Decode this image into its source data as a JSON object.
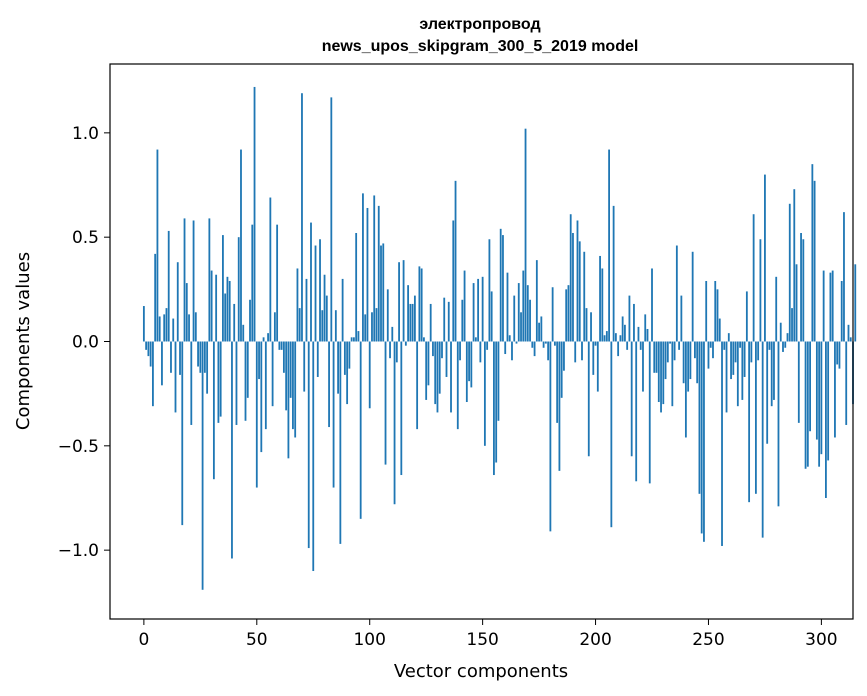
{
  "chart_data": {
    "type": "bar",
    "title_line1": "электропровод",
    "title_line2": "news_upos_skipgram_300_5_2019 model",
    "xlabel": "Vector components",
    "ylabel": "Components values",
    "xlim": [
      -15,
      314
    ],
    "ylim": [
      -1.33,
      1.33
    ],
    "xticks": [
      0,
      50,
      100,
      150,
      200,
      250,
      300
    ],
    "xtick_labels": [
      "0",
      "50",
      "100",
      "150",
      "200",
      "250",
      "300"
    ],
    "yticks": [
      -1.0,
      -0.5,
      0.0,
      0.5,
      1.0
    ],
    "ytick_labels": [
      "−1.0",
      "−0.5",
      "0.0",
      "0.5",
      "1.0"
    ],
    "bar_color": "#1f77b4",
    "values": [
      0.17,
      -0.04,
      -0.07,
      -0.12,
      -0.31,
      0.42,
      0.92,
      0.12,
      -0.21,
      0.13,
      0.16,
      0.53,
      -0.15,
      0.11,
      -0.34,
      0.38,
      -0.16,
      -0.88,
      0.59,
      0.28,
      0.13,
      -0.4,
      0.58,
      0.14,
      -0.12,
      -0.15,
      -1.19,
      -0.15,
      -0.25,
      0.59,
      0.34,
      -0.66,
      0.32,
      -0.39,
      -0.36,
      0.51,
      0.23,
      0.31,
      0.29,
      -1.04,
      0.18,
      -0.4,
      0.5,
      0.92,
      0.08,
      -0.38,
      -0.27,
      0.2,
      0.56,
      1.22,
      -0.7,
      -0.18,
      -0.53,
      0.02,
      -0.42,
      0.04,
      0.69,
      -0.31,
      0.14,
      0.56,
      -0.04,
      -0.04,
      -0.15,
      -0.33,
      -0.56,
      -0.27,
      -0.42,
      -0.46,
      0.35,
      0.16,
      1.19,
      -0.24,
      0.3,
      -0.99,
      0.57,
      -1.1,
      0.46,
      -0.17,
      0.49,
      0.15,
      0.32,
      0.22,
      -0.41,
      1.17,
      -0.7,
      0.15,
      -0.25,
      -0.97,
      0.3,
      -0.16,
      -0.3,
      -0.13,
      0.02,
      0.02,
      0.52,
      0.05,
      -0.85,
      0.71,
      0.13,
      0.64,
      -0.32,
      0.14,
      0.7,
      0.16,
      0.65,
      0.46,
      0.47,
      -0.59,
      0.25,
      -0.08,
      0.07,
      -0.78,
      -0.1,
      0.38,
      -0.64,
      0.39,
      -0.02,
      0.27,
      0.18,
      0.18,
      0.22,
      -0.42,
      0.36,
      0.35,
      0.02,
      -0.28,
      -0.21,
      0.18,
      -0.07,
      -0.3,
      -0.34,
      -0.25,
      -0.08,
      0.21,
      -0.17,
      0.19,
      -0.34,
      0.58,
      0.77,
      -0.42,
      -0.09,
      0.2,
      0.34,
      -0.29,
      -0.19,
      -0.22,
      0.28,
      0.02,
      0.3,
      -0.1,
      0.31,
      -0.5,
      -0.04,
      0.49,
      0.24,
      -0.64,
      -0.58,
      -0.38,
      0.54,
      0.51,
      -0.06,
      0.33,
      0.03,
      -0.09,
      0.22,
      -0.01,
      0.28,
      0.14,
      0.34,
      1.02,
      0.27,
      0.2,
      -0.03,
      -0.07,
      0.39,
      0.09,
      0.12,
      -0.03,
      -0.01,
      -0.09,
      -0.91,
      0.26,
      -0.02,
      -0.39,
      -0.62,
      -0.27,
      -0.14,
      0.25,
      0.27,
      0.61,
      0.52,
      -0.1,
      0.58,
      0.48,
      -0.09,
      0.43,
      0.16,
      -0.55,
      0.14,
      -0.16,
      -0.02,
      -0.24,
      0.41,
      0.35,
      0.03,
      0.05,
      0.92,
      -0.89,
      0.65,
      0.04,
      -0.07,
      0.03,
      0.12,
      0.08,
      -0.04,
      0.22,
      -0.55,
      0.18,
      -0.67,
      0.07,
      -0.04,
      -0.24,
      0.13,
      0.06,
      -0.68,
      0.35,
      -0.15,
      -0.15,
      -0.29,
      -0.34,
      -0.3,
      -0.18,
      -0.1,
      -0.01,
      -0.31,
      -0.09,
      0.46,
      -0.04,
      0.22,
      -0.2,
      -0.46,
      -0.24,
      -0.18,
      0.43,
      -0.08,
      -0.2,
      -0.73,
      -0.92,
      -0.96,
      0.29,
      -0.13,
      -0.03,
      -0.08,
      0.29,
      0.25,
      0.11,
      -0.98,
      -0.04,
      -0.34,
      0.04,
      -0.18,
      -0.16,
      -0.1,
      -0.31,
      -0.03,
      -0.28,
      -0.17,
      0.24,
      -0.77,
      -0.1,
      0.61,
      -0.73,
      -0.09,
      0.49,
      -0.94,
      0.8,
      -0.49,
      -0.04,
      -0.31,
      -0.28,
      0.31,
      -0.79,
      0.09,
      -0.05,
      -0.03,
      0.04,
      0.66,
      0.16,
      0.73,
      0.37,
      -0.39,
      0.52,
      0.49,
      -0.61,
      -0.6,
      -0.43,
      0.85,
      0.77,
      -0.47,
      -0.6,
      -0.54,
      0.34,
      -0.75,
      -0.57,
      0.33,
      0.34,
      -0.46,
      -0.11,
      -0.13,
      0.29,
      0.62,
      -0.4,
      0.08,
      0.02,
      -0.3,
      0.37
    ]
  }
}
